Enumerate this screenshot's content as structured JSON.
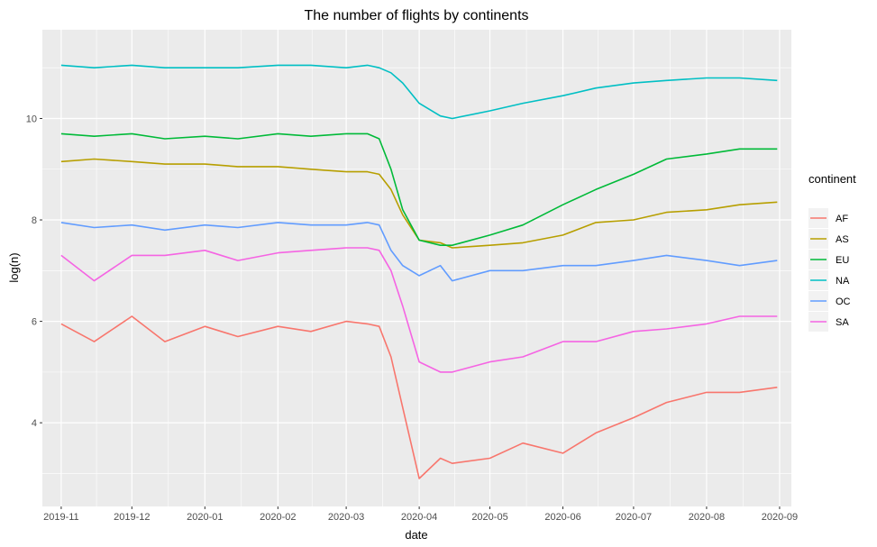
{
  "chart_data": {
    "type": "line",
    "title": "The number of flights by continents",
    "xlabel": "date",
    "ylabel": "log(n)",
    "x_ticks": [
      "2019-11",
      "2019-12",
      "2020-01",
      "2020-02",
      "2020-03",
      "2020-04",
      "2020-05",
      "2020-06",
      "2020-07",
      "2020-08",
      "2020-09"
    ],
    "y_ticks": [
      4,
      6,
      8,
      10
    ],
    "xlim": [
      "2019-10-24",
      "2020-09-06"
    ],
    "ylim": [
      2.35,
      11.75
    ],
    "grid": true,
    "legend": {
      "title": "continent",
      "position": "right"
    },
    "x": [
      "2019-11-01",
      "2019-11-15",
      "2019-12-01",
      "2019-12-15",
      "2020-01-01",
      "2020-01-15",
      "2020-02-01",
      "2020-02-15",
      "2020-03-01",
      "2020-03-10",
      "2020-03-15",
      "2020-03-20",
      "2020-03-25",
      "2020-04-01",
      "2020-04-10",
      "2020-04-15",
      "2020-05-01",
      "2020-05-15",
      "2020-06-01",
      "2020-06-15",
      "2020-07-01",
      "2020-07-15",
      "2020-08-01",
      "2020-08-15",
      "2020-08-31"
    ],
    "series": [
      {
        "name": "AF",
        "color": "#F8766D",
        "values": [
          5.95,
          5.6,
          6.1,
          5.6,
          5.9,
          5.7,
          5.9,
          5.8,
          6.0,
          5.95,
          5.9,
          5.3,
          4.3,
          2.9,
          3.3,
          3.2,
          3.3,
          3.6,
          3.4,
          3.8,
          4.1,
          4.4,
          4.6,
          4.6,
          4.7
        ]
      },
      {
        "name": "AS",
        "color": "#B79F00",
        "values": [
          9.15,
          9.2,
          9.15,
          9.1,
          9.1,
          9.05,
          9.05,
          9.0,
          8.95,
          8.95,
          8.9,
          8.6,
          8.1,
          7.6,
          7.55,
          7.45,
          7.5,
          7.55,
          7.7,
          7.95,
          8.0,
          8.15,
          8.2,
          8.3,
          8.35
        ]
      },
      {
        "name": "EU",
        "color": "#00BA38",
        "values": [
          9.7,
          9.65,
          9.7,
          9.6,
          9.65,
          9.6,
          9.7,
          9.65,
          9.7,
          9.7,
          9.6,
          9.0,
          8.2,
          7.6,
          7.5,
          7.5,
          7.7,
          7.9,
          8.3,
          8.6,
          8.9,
          9.2,
          9.3,
          9.4,
          9.4
        ]
      },
      {
        "name": "NA",
        "color": "#00BFC4",
        "values": [
          11.05,
          11.0,
          11.05,
          11.0,
          11.0,
          11.0,
          11.05,
          11.05,
          11.0,
          11.05,
          11.0,
          10.9,
          10.7,
          10.3,
          10.05,
          10.0,
          10.15,
          10.3,
          10.45,
          10.6,
          10.7,
          10.75,
          10.8,
          10.8,
          10.75
        ]
      },
      {
        "name": "OC",
        "color": "#619CFF",
        "values": [
          7.95,
          7.85,
          7.9,
          7.8,
          7.9,
          7.85,
          7.95,
          7.9,
          7.9,
          7.95,
          7.9,
          7.4,
          7.1,
          6.9,
          7.1,
          6.8,
          7.0,
          7.0,
          7.1,
          7.1,
          7.2,
          7.3,
          7.2,
          7.1,
          7.2
        ]
      },
      {
        "name": "SA",
        "color": "#F564E3",
        "values": [
          7.3,
          6.8,
          7.3,
          7.3,
          7.4,
          7.2,
          7.35,
          7.4,
          7.45,
          7.45,
          7.4,
          7.0,
          6.3,
          5.2,
          5.0,
          5.0,
          5.2,
          5.3,
          5.6,
          5.6,
          5.8,
          5.85,
          5.95,
          6.1,
          6.1
        ]
      }
    ]
  }
}
